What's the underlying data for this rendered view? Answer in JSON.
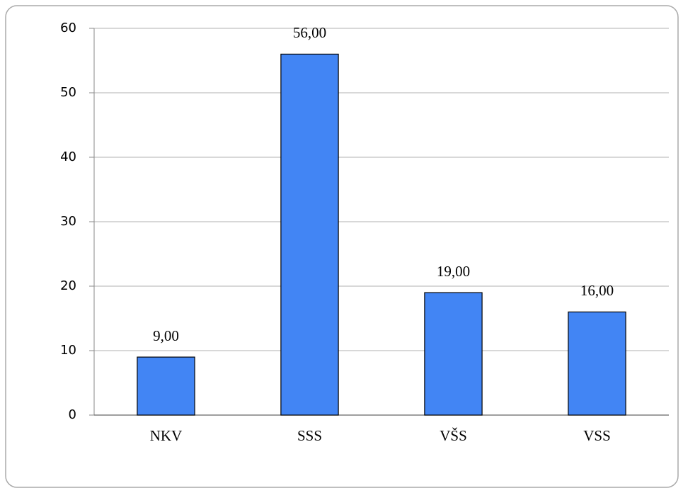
{
  "chart_data": {
    "type": "bar",
    "categories": [
      "NKV",
      "SSS",
      "VŠS",
      "VSS"
    ],
    "values": [
      9,
      56,
      19,
      16
    ],
    "value_labels": [
      "9,00",
      "56,00",
      "19,00",
      "16,00"
    ],
    "color": "#4285f4",
    "ylim": [
      0,
      60
    ],
    "yticks": [
      0,
      10,
      20,
      30,
      40,
      50,
      60
    ],
    "grid": true
  }
}
